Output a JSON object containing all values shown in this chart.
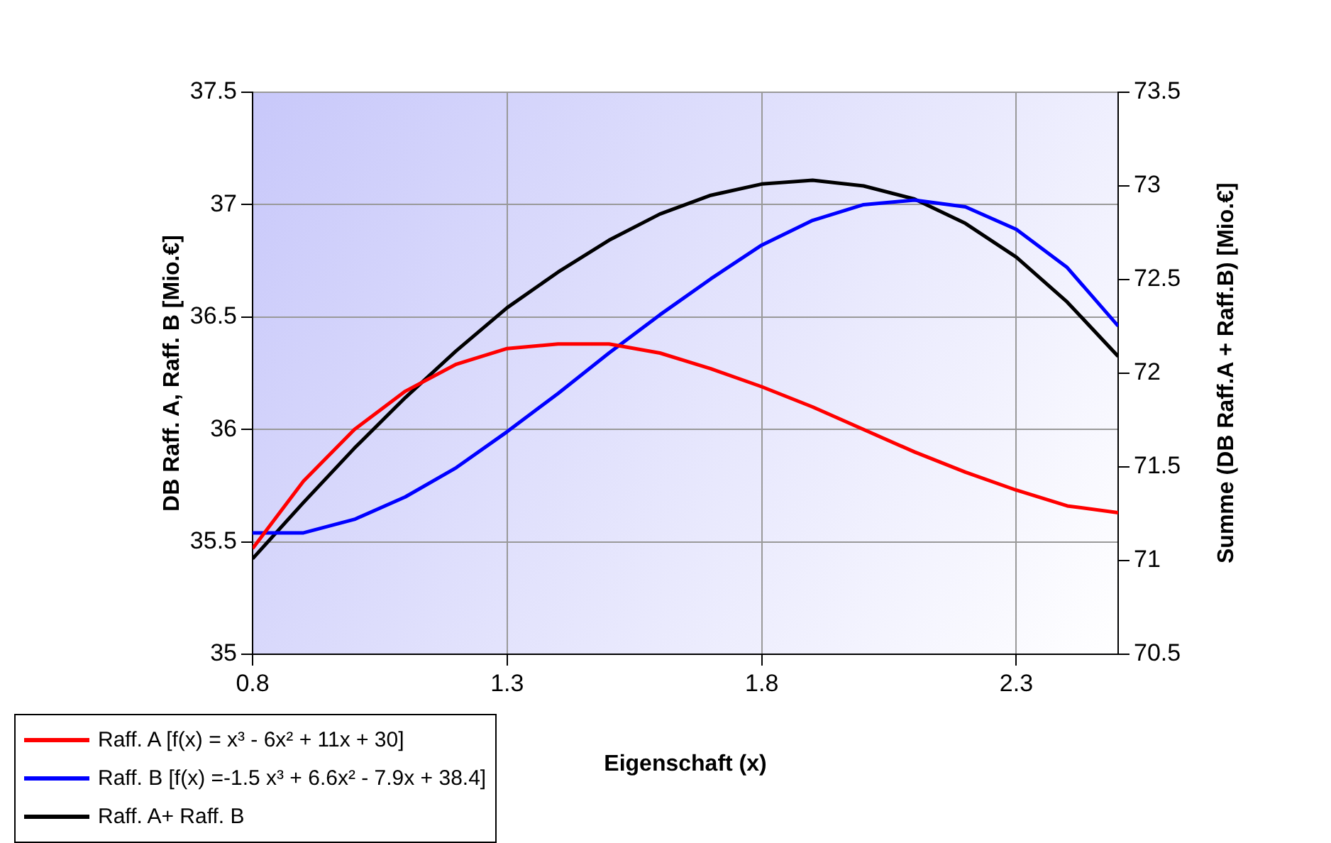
{
  "chart_data": {
    "type": "line",
    "xlabel": "Eigenschaft (x)",
    "ylabel": "DB Raff. A, Raff. B [Mio.€]",
    "y2label": "Summe (DB Raff.A + Raff.B) [Mio.€]",
    "x": [
      0.8,
      0.9,
      1.0,
      1.1,
      1.2,
      1.3,
      1.4,
      1.5,
      1.6,
      1.7,
      1.8,
      1.9,
      2.0,
      2.1,
      2.2,
      2.3,
      2.4,
      2.5
    ],
    "series": [
      {
        "name": "Raff. A [f(x) = x³ - 6x² + 11x + 30]",
        "color": "#ff0000",
        "values": [
          35.47,
          35.77,
          36.0,
          36.17,
          36.29,
          36.36,
          36.38,
          36.38,
          36.34,
          36.27,
          36.19,
          36.1,
          36.0,
          35.9,
          35.81,
          35.73,
          35.66,
          35.63
        ]
      },
      {
        "name": "Raff. B [f(x) =-1.5 x³ + 6.6x² - 7.9x + 38.4]",
        "color": "#0000ff",
        "values": [
          35.54,
          35.54,
          35.6,
          35.7,
          35.83,
          35.99,
          36.16,
          36.34,
          36.51,
          36.67,
          36.82,
          36.93,
          37.0,
          37.02,
          36.99,
          36.89,
          36.72,
          36.46
        ]
      },
      {
        "name": "Raff. A+ Raff. B",
        "color": "#000000",
        "axis": "y2",
        "values": [
          71.01,
          71.31,
          71.6,
          71.87,
          72.12,
          72.35,
          72.54,
          72.71,
          72.85,
          72.95,
          73.01,
          73.03,
          73.0,
          72.93,
          72.8,
          72.62,
          72.38,
          72.09
        ]
      }
    ],
    "xlim": [
      0.8,
      2.5
    ],
    "xticks": [
      0.8,
      1.3,
      1.8,
      2.3
    ],
    "ylim": [
      35,
      37.5
    ],
    "yticks": [
      35,
      35.5,
      36,
      36.5,
      37,
      37.5
    ],
    "y2lim": [
      70.5,
      73.5
    ],
    "y2ticks": [
      70.5,
      71,
      71.5,
      72,
      72.5,
      73,
      73.5
    ],
    "grid": true,
    "legend": "bottom left"
  }
}
